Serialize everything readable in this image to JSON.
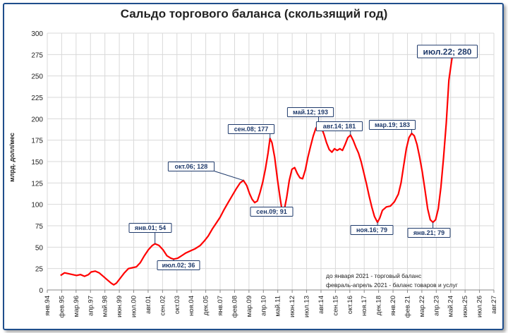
{
  "chart_data": {
    "type": "line",
    "title": "Сальдо торгового баланса (скользящий год)",
    "ylabel": "млрд. долл/мес",
    "xlabel": "",
    "ylim": [
      0,
      300
    ],
    "yticks": [
      0,
      25,
      50,
      75,
      100,
      125,
      150,
      175,
      200,
      225,
      250,
      275,
      300
    ],
    "xlim": [
      1994.0,
      2027.583
    ],
    "xtick_labels": [
      "янв.94",
      "фев.95",
      "мар.96",
      "апр.97",
      "май.98",
      "июн.99",
      "июл.00",
      "авг.01",
      "сен.02",
      "окт.03",
      "ноя.04",
      "дек.05",
      "янв.07",
      "фев.08",
      "мар.09",
      "апр.10",
      "май.11",
      "июн.12",
      "июл.13",
      "авг.14",
      "сен.15",
      "окт.16",
      "ноя.17",
      "дек.18",
      "янв.20",
      "фев.21",
      "мар.22",
      "апр.23",
      "май.24",
      "июн.25",
      "июл.26",
      "авг.27"
    ],
    "grid": true,
    "series": [
      {
        "color": "#ff0000",
        "points": [
          [
            1995.0,
            17
          ],
          [
            1995.3,
            20
          ],
          [
            1995.6,
            19
          ],
          [
            1995.9,
            18
          ],
          [
            1996.2,
            17
          ],
          [
            1996.5,
            18
          ],
          [
            1996.8,
            16
          ],
          [
            1997.1,
            18
          ],
          [
            1997.3,
            21
          ],
          [
            1997.6,
            22
          ],
          [
            1997.9,
            20
          ],
          [
            1998.2,
            16
          ],
          [
            1998.5,
            12
          ],
          [
            1998.8,
            8
          ],
          [
            1999.0,
            6
          ],
          [
            1999.2,
            8
          ],
          [
            1999.5,
            14
          ],
          [
            1999.8,
            20
          ],
          [
            2000.1,
            25
          ],
          [
            2000.4,
            26
          ],
          [
            2000.7,
            27
          ],
          [
            2001.0,
            32
          ],
          [
            2001.3,
            40
          ],
          [
            2001.6,
            47
          ],
          [
            2001.9,
            52
          ],
          [
            2002.1,
            54
          ],
          [
            2002.4,
            52
          ],
          [
            2002.7,
            47
          ],
          [
            2003.0,
            40
          ],
          [
            2003.3,
            37
          ],
          [
            2003.5,
            36
          ],
          [
            2003.8,
            37
          ],
          [
            2004.1,
            40
          ],
          [
            2004.4,
            43
          ],
          [
            2004.8,
            46
          ],
          [
            2005.1,
            48
          ],
          [
            2005.5,
            52
          ],
          [
            2005.8,
            57
          ],
          [
            2006.1,
            63
          ],
          [
            2006.4,
            71
          ],
          [
            2006.7,
            78
          ],
          [
            2007.0,
            85
          ],
          [
            2007.3,
            94
          ],
          [
            2007.6,
            102
          ],
          [
            2007.9,
            110
          ],
          [
            2008.2,
            118
          ],
          [
            2008.5,
            125
          ],
          [
            2008.75,
            128
          ],
          [
            2009.0,
            122
          ],
          [
            2009.2,
            113
          ],
          [
            2009.4,
            106
          ],
          [
            2009.6,
            102
          ],
          [
            2009.8,
            104
          ],
          [
            2010.0,
            114
          ],
          [
            2010.2,
            126
          ],
          [
            2010.4,
            141
          ],
          [
            2010.6,
            160
          ],
          [
            2010.75,
            177
          ],
          [
            2010.9,
            172
          ],
          [
            2011.1,
            155
          ],
          [
            2011.3,
            130
          ],
          [
            2011.5,
            108
          ],
          [
            2011.67,
            91
          ],
          [
            2011.8,
            92
          ],
          [
            2012.0,
            108
          ],
          [
            2012.2,
            128
          ],
          [
            2012.4,
            141
          ],
          [
            2012.6,
            143
          ],
          [
            2012.8,
            136
          ],
          [
            2013.0,
            131
          ],
          [
            2013.2,
            130
          ],
          [
            2013.4,
            140
          ],
          [
            2013.6,
            155
          ],
          [
            2013.8,
            168
          ],
          [
            2014.0,
            180
          ],
          [
            2014.2,
            189
          ],
          [
            2014.4,
            193
          ],
          [
            2014.6,
            190
          ],
          [
            2014.8,
            182
          ],
          [
            2015.0,
            172
          ],
          [
            2015.2,
            164
          ],
          [
            2015.4,
            161
          ],
          [
            2015.6,
            165
          ],
          [
            2015.8,
            163
          ],
          [
            2016.0,
            165
          ],
          [
            2016.2,
            163
          ],
          [
            2016.4,
            170
          ],
          [
            2016.6,
            178
          ],
          [
            2016.8,
            181
          ],
          [
            2017.0,
            175
          ],
          [
            2017.2,
            167
          ],
          [
            2017.4,
            160
          ],
          [
            2017.6,
            150
          ],
          [
            2017.8,
            137
          ],
          [
            2018.0,
            124
          ],
          [
            2018.2,
            110
          ],
          [
            2018.4,
            97
          ],
          [
            2018.6,
            86
          ],
          [
            2018.83,
            79
          ],
          [
            2019.0,
            84
          ],
          [
            2019.2,
            93
          ],
          [
            2019.5,
            97
          ],
          [
            2019.8,
            98
          ],
          [
            2020.1,
            103
          ],
          [
            2020.4,
            112
          ],
          [
            2020.6,
            125
          ],
          [
            2020.8,
            145
          ],
          [
            2021.0,
            165
          ],
          [
            2021.2,
            178
          ],
          [
            2021.4,
            183
          ],
          [
            2021.6,
            180
          ],
          [
            2021.8,
            170
          ],
          [
            2022.0,
            155
          ],
          [
            2022.2,
            138
          ],
          [
            2022.4,
            117
          ],
          [
            2022.6,
            95
          ],
          [
            2022.8,
            82
          ],
          [
            2023.0,
            79
          ],
          [
            2023.2,
            82
          ],
          [
            2023.4,
            95
          ],
          [
            2023.6,
            120
          ],
          [
            2023.8,
            155
          ],
          [
            2024.0,
            195
          ],
          [
            2024.2,
            245
          ],
          [
            2024.35,
            262
          ],
          [
            2024.5,
            278
          ],
          [
            2024.6,
            280
          ]
        ]
      }
    ],
    "annotations": [
      {
        "text": "янв.01; 54",
        "x": 2002.1,
        "y": 54
      },
      {
        "text": "июл.02; 36",
        "x": 2003.5,
        "y": 36
      },
      {
        "text": "окт.06; 128",
        "x": 2008.75,
        "y": 128
      },
      {
        "text": "сен.08; 177",
        "x": 2010.75,
        "y": 177
      },
      {
        "text": "сен.09; 91",
        "x": 2011.67,
        "y": 91
      },
      {
        "text": "май.12; 193",
        "x": 2014.4,
        "y": 193
      },
      {
        "text": "авг.14; 181",
        "x": 2016.8,
        "y": 181
      },
      {
        "text": "ноя.16; 79",
        "x": 2018.83,
        "y": 79
      },
      {
        "text": "мар.19; 183",
        "x": 2021.4,
        "y": 183
      },
      {
        "text": "янв.21; 79",
        "x": 2023.0,
        "y": 79
      },
      {
        "text": "июл.22; 280",
        "x": 2024.6,
        "y": 280
      }
    ],
    "notes": [
      "до января 2021 - торговый баланс",
      "февраль-апрель 2021 - баланс товаров и услуг"
    ]
  }
}
